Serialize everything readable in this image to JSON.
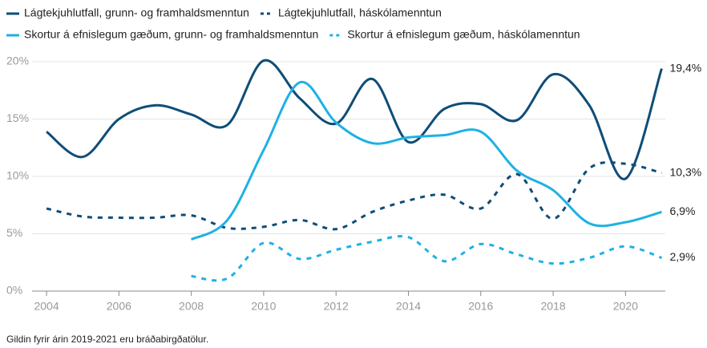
{
  "chart_data": {
    "type": "line",
    "x": [
      2004,
      2005,
      2006,
      2007,
      2008,
      2009,
      2010,
      2011,
      2012,
      2013,
      2014,
      2015,
      2016,
      2017,
      2018,
      2019,
      2020,
      2021
    ],
    "series": [
      {
        "name": "Lágtekjuhlutfall, grunn- og framhaldsmenntun",
        "color": "#0e4d78",
        "dashed": false,
        "values": [
          13.9,
          11.7,
          15.0,
          16.2,
          15.4,
          14.5,
          20.1,
          16.8,
          14.6,
          18.5,
          13.0,
          15.9,
          16.3,
          14.9,
          18.9,
          16.2,
          9.8,
          19.4
        ],
        "value_labels": [
          null,
          null,
          null,
          null,
          null,
          null,
          null,
          null,
          null,
          null,
          null,
          null,
          null,
          null,
          null,
          null,
          null,
          "19,4%"
        ]
      },
      {
        "name": "Lágtekjuhlutfall, háskólamenntun",
        "color": "#0e4d78",
        "dashed": true,
        "values": [
          7.2,
          6.5,
          6.4,
          6.4,
          6.6,
          5.5,
          5.6,
          6.2,
          5.4,
          6.9,
          7.9,
          8.4,
          7.2,
          10.2,
          6.3,
          10.7,
          11.1,
          10.3
        ],
        "value_labels": [
          null,
          null,
          null,
          null,
          null,
          null,
          null,
          null,
          null,
          null,
          null,
          null,
          null,
          null,
          null,
          null,
          null,
          "10,3%"
        ]
      },
      {
        "name": "Skortur á efnislegum gæðum, grunn- og framhaldsmenntun",
        "color": "#1eb1e4",
        "dashed": false,
        "values": [
          null,
          null,
          null,
          null,
          4.5,
          6.2,
          12.3,
          18.2,
          14.7,
          12.9,
          13.4,
          13.6,
          13.9,
          10.5,
          8.8,
          5.9,
          6.0,
          6.9
        ],
        "value_labels": [
          null,
          null,
          null,
          null,
          null,
          null,
          null,
          null,
          null,
          null,
          null,
          null,
          null,
          null,
          null,
          null,
          null,
          "6,9%"
        ]
      },
      {
        "name": "Skortur á efnislegum gæðum, háskólamenntun",
        "color": "#1eb1e4",
        "dashed": true,
        "values": [
          null,
          null,
          null,
          null,
          1.3,
          1.1,
          4.2,
          2.8,
          3.6,
          4.3,
          4.7,
          2.6,
          4.1,
          3.2,
          2.4,
          2.9,
          3.9,
          2.9
        ],
        "value_labels": [
          null,
          null,
          null,
          null,
          null,
          null,
          null,
          null,
          null,
          null,
          null,
          null,
          null,
          null,
          null,
          null,
          null,
          "2,9%"
        ]
      }
    ],
    "xlim": [
      2003.6,
      2021.1
    ],
    "xticks": [
      2004,
      2006,
      2008,
      2010,
      2012,
      2014,
      2016,
      2018,
      2020
    ],
    "ylim": [
      0,
      20
    ],
    "yticks": [
      {
        "value": 0,
        "label": "0%"
      },
      {
        "value": 5,
        "label": "5%"
      },
      {
        "value": 10,
        "label": "10%"
      },
      {
        "value": 15,
        "label": "15%"
      },
      {
        "value": 20,
        "label": "20%"
      }
    ],
    "grid": true,
    "footnote": "Gildin fyrir árin 2019-2021 eru bráðabirgðatölur."
  }
}
